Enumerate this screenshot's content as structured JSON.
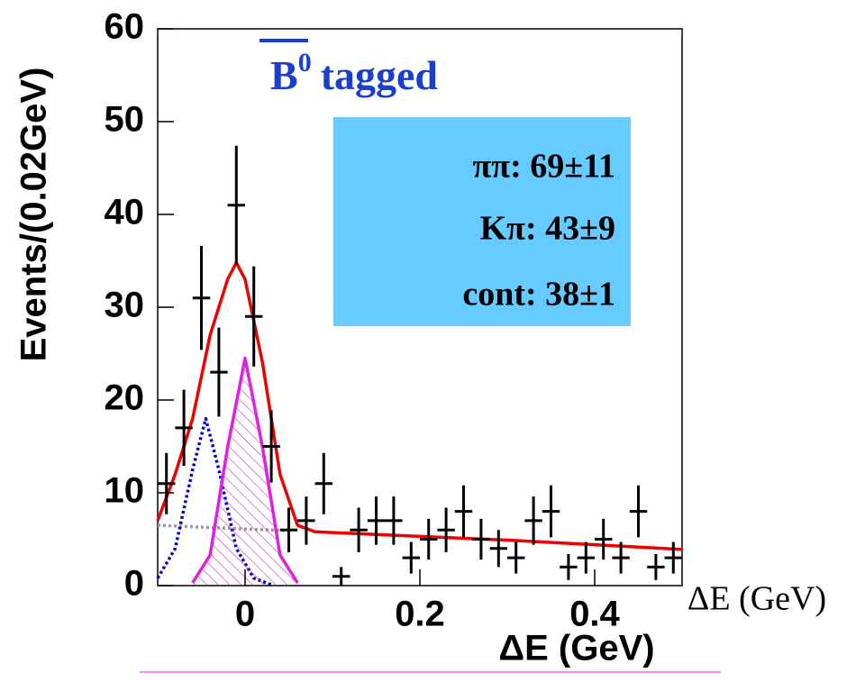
{
  "chart_data": {
    "type": "errorbar",
    "title": {
      "base": "B",
      "superscript": "0",
      "text": "tagged"
    },
    "legend_lines": [
      "ππ: 69±11",
      "Kπ: 43±9",
      "cont: 38±1"
    ],
    "y_label": "Events/(0.02GeV)",
    "x_label": "ΔE (GeV)",
    "x_label_alt": "ΔE (GeV)",
    "xlim": [
      -0.1,
      0.5
    ],
    "ylim": [
      0,
      60
    ],
    "xticks": [
      0,
      0.2,
      0.4
    ],
    "yticks": [
      0,
      10,
      20,
      30,
      40,
      50,
      60
    ],
    "bin_width": 0.02,
    "color": "#000000",
    "x": [
      -0.09,
      -0.07,
      -0.05,
      -0.03,
      -0.01,
      0.01,
      0.03,
      0.05,
      0.07,
      0.09,
      0.11,
      0.13,
      0.15,
      0.17,
      0.19,
      0.21,
      0.23,
      0.25,
      0.27,
      0.29,
      0.31,
      0.33,
      0.35,
      0.37,
      0.39,
      0.41,
      0.43,
      0.45,
      0.47,
      0.49
    ],
    "values": [
      11,
      17,
      31,
      23,
      41,
      29,
      15,
      6,
      7,
      11,
      1,
      6,
      7,
      7,
      3,
      5,
      6,
      8,
      5,
      4,
      3,
      7,
      8,
      2,
      3,
      5,
      3,
      8,
      2,
      3
    ],
    "errors": [
      3.3,
      4.1,
      5.6,
      4.8,
      6.4,
      5.4,
      3.9,
      2.4,
      2.6,
      3.3,
      1,
      2.4,
      2.6,
      2.6,
      1.7,
      2.2,
      2.4,
      2.8,
      2.2,
      2,
      1.7,
      2.6,
      2.8,
      1.4,
      1.7,
      2.2,
      1.7,
      2.8,
      1.4,
      1.7
    ],
    "curves": [
      {
        "color": "#999999",
        "style": "dotted",
        "x": [
          -0.1,
          -0.05,
          0,
          0.05
        ],
        "values": [
          6.5,
          6.3,
          6.1,
          5.9
        ]
      },
      {
        "color": "#0000cc",
        "style": "dotted",
        "x": [
          -0.1,
          -0.08,
          -0.06,
          -0.045,
          -0.03,
          -0.01,
          0.01,
          0.03
        ],
        "values": [
          0.8,
          4,
          12.5,
          18,
          12.5,
          4,
          0.8,
          0.1
        ]
      },
      {
        "color": "#e020e0",
        "style": "hatched",
        "x": [
          -0.06,
          -0.04,
          -0.02,
          0,
          0.02,
          0.04,
          0.06
        ],
        "values": [
          0.3,
          3.3,
          14.9,
          24.5,
          14.9,
          3.3,
          0.3
        ]
      },
      {
        "color": "#ee0000",
        "style": "solid",
        "x": [
          -0.1,
          -0.08,
          -0.06,
          -0.04,
          -0.02,
          -0.01,
          0,
          0.02,
          0.04,
          0.06,
          0.08,
          0.2,
          0.3,
          0.4,
          0.5
        ],
        "values": [
          7,
          12,
          18,
          27,
          33,
          34.8,
          33,
          24,
          12,
          6.5,
          5.8,
          5.3,
          4.9,
          4.4,
          3.9
        ]
      }
    ]
  }
}
